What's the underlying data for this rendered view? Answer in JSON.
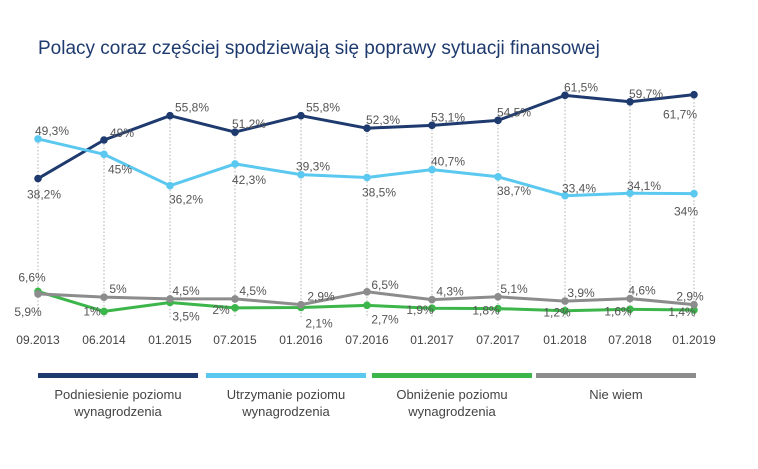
{
  "chart_data": {
    "type": "line",
    "title": "Polacy coraz częściej spodziewają się poprawy sytuacji finansowej",
    "categories": [
      "09.2013",
      "06.2014",
      "01.2015",
      "07.2015",
      "01.2016",
      "07.2016",
      "01.2017",
      "07.2017",
      "01.2018",
      "07.2018",
      "01.2019"
    ],
    "ylim": [
      0,
      70
    ],
    "grid": "vertical dotted lines at each category",
    "legend_position": "bottom",
    "series": [
      {
        "name": "Podniesienie poziomu wynagrodzenia",
        "color": "#1e3a6e",
        "values": [
          38.2,
          49,
          55.8,
          51.2,
          55.8,
          52.3,
          53.1,
          54.5,
          61.5,
          59.7,
          61.7
        ],
        "labels": [
          "38,2%",
          "49%",
          "55,8%",
          "51,2%",
          "55,8%",
          "52,3%",
          "53,1%",
          "54,5%",
          "61,5%",
          "59,7%",
          "61,7%"
        ]
      },
      {
        "name": "Utrzymanie poziomu wynagrodzenia",
        "color": "#5bc8f0",
        "values": [
          49.3,
          45,
          36.2,
          42.3,
          39.3,
          38.5,
          40.7,
          38.7,
          33.4,
          34.1,
          34
        ],
        "labels": [
          "49,3%",
          "45%",
          "36,2%",
          "42,3%",
          "39,3%",
          "38,5%",
          "40,7%",
          "38,7%",
          "33,4%",
          "34,1%",
          "34%"
        ]
      },
      {
        "name": "Obniżenie poziomu wynagrodzenia",
        "color": "#3cb64a",
        "values": [
          6.6,
          1,
          3.5,
          2,
          2.1,
          2.7,
          1.9,
          1.8,
          1.2,
          1.6,
          1.4
        ],
        "labels": [
          "6,6%",
          "1%",
          "3,5%",
          "2%",
          "2,1%",
          "2,7%",
          "1,9%",
          "1,8%",
          "1,2%",
          "1,6%",
          "1,4%"
        ]
      },
      {
        "name": "Nie wiem",
        "color": "#8c8c8c",
        "values": [
          5.9,
          5,
          4.5,
          4.5,
          2.9,
          6.5,
          4.3,
          5.1,
          3.9,
          4.6,
          2.9
        ],
        "labels": [
          "5,9%",
          "5%",
          "4,5%",
          "4,5%",
          "2,9%",
          "6,5%",
          "4,3%",
          "5,1%",
          "3,9%",
          "4,6%",
          "2,9%"
        ]
      }
    ]
  }
}
